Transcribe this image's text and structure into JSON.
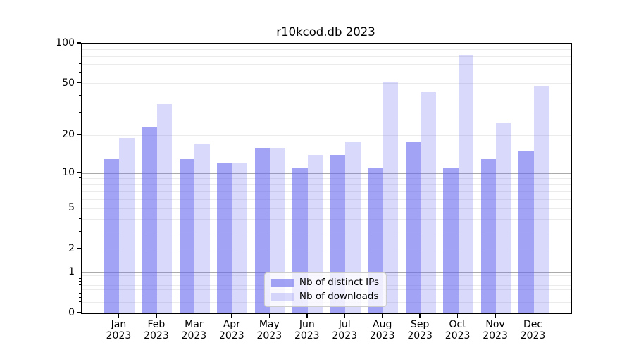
{
  "title": "r10kcod.db 2023",
  "chart_data": {
    "type": "bar",
    "title": "r10kcod.db 2023",
    "categories": [
      "Jan 2023",
      "Feb 2023",
      "Mar 2023",
      "Apr 2023",
      "May 2023",
      "Jun 2023",
      "Jul 2023",
      "Aug 2023",
      "Sep 2023",
      "Oct 2023",
      "Nov 2023",
      "Dec 2023"
    ],
    "series": [
      {
        "name": "Nb of distinct IPs",
        "color": "rgba(102,102,238,0.6)",
        "values": [
          13,
          23,
          13,
          12,
          16,
          11,
          14,
          11,
          18,
          11,
          13,
          15
        ]
      },
      {
        "name": "Nb of downloads",
        "color": "rgba(102,102,238,0.25)",
        "values": [
          19,
          35,
          17,
          12,
          16,
          14,
          18,
          51,
          43,
          82,
          25,
          48
        ]
      }
    ],
    "xlabel": "",
    "ylabel": "",
    "yscale": "log1p",
    "ylim": [
      0,
      100
    ],
    "ytick_values": [
      100,
      50,
      20,
      10,
      5,
      2,
      1,
      0
    ],
    "grid_major_values": [
      10,
      1
    ],
    "grid_minor_values": [
      90,
      80,
      70,
      60,
      50,
      40,
      30,
      20,
      9,
      8,
      7,
      6,
      5,
      4,
      3,
      2,
      0.9,
      0.8,
      0.7,
      0.6,
      0.5,
      0.4,
      0.3,
      0.2
    ],
    "legend_position": "lower center",
    "grid": true,
    "colors": {
      "grid_major": "#ababab",
      "grid_minor": "#ebebeb",
      "spine": "#000000",
      "bar_base": "#6666ee"
    }
  }
}
